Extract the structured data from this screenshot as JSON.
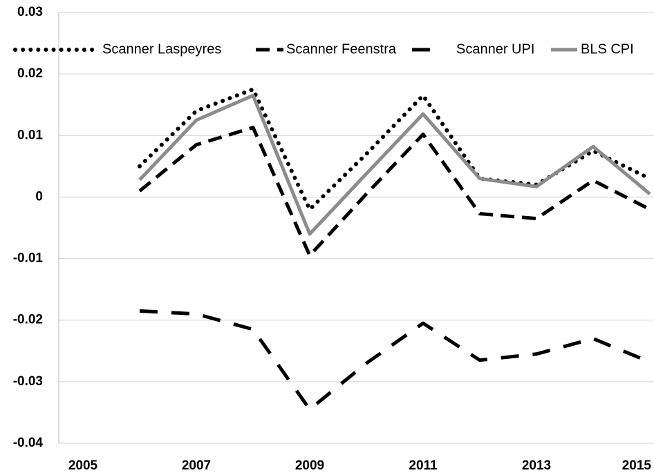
{
  "chart_data": {
    "type": "line",
    "categories": [
      "2005",
      null,
      "2007",
      null,
      "2009",
      null,
      "2011",
      null,
      "2013",
      null,
      "2015"
    ],
    "series": [
      {
        "name": "Scanner Laspeyres",
        "color": "#000000",
        "values": [
          null,
          0.005,
          0.014,
          0.0175,
          -0.002,
          0.007,
          0.0165,
          0.003,
          0.002,
          0.0075,
          0.003
        ]
      },
      {
        "name": "Scanner Feenstra",
        "color": "#000000",
        "values": [
          null,
          0.001,
          0.0085,
          0.0113,
          -0.0095,
          0.0005,
          0.0102,
          -0.0027,
          -0.0035,
          0.0027,
          -0.002
        ]
      },
      {
        "name": "Scanner UPI",
        "color": "#000000",
        "values": [
          null,
          -0.0185,
          -0.019,
          -0.0215,
          -0.0345,
          -0.027,
          -0.0205,
          -0.0265,
          -0.0255,
          -0.023,
          -0.0268
        ]
      },
      {
        "name": "BLS CPI",
        "color": "#8c8c8c",
        "values": [
          null,
          0.0028,
          0.0125,
          0.0165,
          -0.006,
          0.0038,
          0.0135,
          0.003,
          0.0017,
          0.0082,
          0.0005
        ]
      }
    ],
    "ylim": [
      -0.04,
      0.03
    ],
    "yticks": [
      -0.04,
      -0.03,
      -0.02,
      -0.01,
      0,
      0.01,
      0.02,
      0.03
    ],
    "grid": true
  }
}
